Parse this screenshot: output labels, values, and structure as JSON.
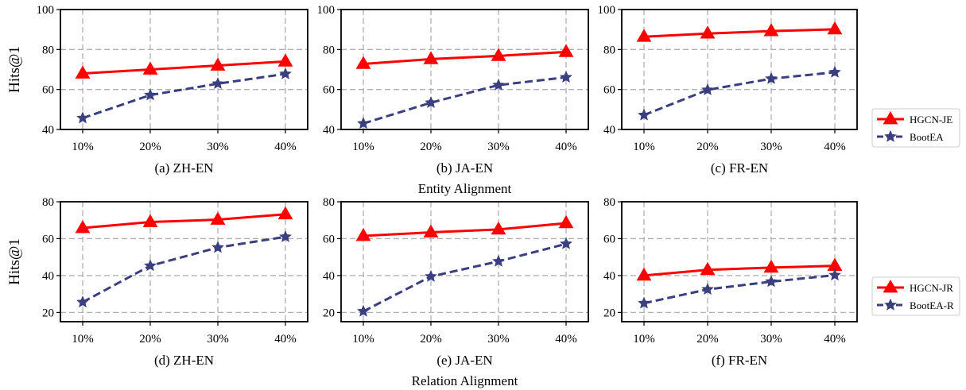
{
  "groups": [
    {
      "title": "Entity Alignment",
      "ylabel": "Hits@1",
      "legend": [
        {
          "name": "HGCN-JE",
          "color": "#ff0000",
          "marker": "triangle",
          "dash": "solid"
        },
        {
          "name": "BootEA",
          "color": "#3b3f7f",
          "marker": "star",
          "dash": "dashed"
        }
      ]
    },
    {
      "title": "Relation Alignment",
      "ylabel": "Hits@1",
      "legend": [
        {
          "name": "HGCN-JR",
          "color": "#ff0000",
          "marker": "triangle",
          "dash": "solid"
        },
        {
          "name": "BootEA-R",
          "color": "#3b3f7f",
          "marker": "star",
          "dash": "dashed"
        }
      ]
    }
  ],
  "chart_data": [
    {
      "type": "line",
      "caption": "(a) ZH-EN",
      "categories": [
        "10%",
        "20%",
        "30%",
        "40%"
      ],
      "ylim": [
        40,
        100
      ],
      "yticks": [
        40,
        60,
        80,
        100
      ],
      "grid": true,
      "series": [
        {
          "name": "HGCN-JE",
          "values": [
            68,
            70,
            72,
            74
          ]
        },
        {
          "name": "BootEA",
          "values": [
            45.7,
            57.2,
            62.9,
            67.8
          ]
        }
      ]
    },
    {
      "type": "line",
      "caption": "(b) JA-EN",
      "categories": [
        "10%",
        "20%",
        "30%",
        "40%"
      ],
      "ylim": [
        40,
        100
      ],
      "yticks": [
        40,
        60,
        80,
        100
      ],
      "grid": true,
      "series": [
        {
          "name": "HGCN-JE",
          "values": [
            72.8,
            75.2,
            76.8,
            78.8
          ]
        },
        {
          "name": "BootEA",
          "values": [
            43,
            53.4,
            62.2,
            66.1
          ]
        }
      ]
    },
    {
      "type": "line",
      "caption": "(c) FR-EN",
      "categories": [
        "10%",
        "20%",
        "30%",
        "40%"
      ],
      "ylim": [
        40,
        100
      ],
      "yticks": [
        40,
        60,
        80,
        100
      ],
      "grid": true,
      "series": [
        {
          "name": "HGCN-JE",
          "values": [
            86.4,
            88,
            89.2,
            90.1
          ]
        },
        {
          "name": "BootEA",
          "values": [
            47.2,
            59.8,
            65.4,
            68.6
          ]
        }
      ]
    },
    {
      "type": "line",
      "caption": "(d) ZH-EN",
      "categories": [
        "10%",
        "20%",
        "30%",
        "40%"
      ],
      "ylim": [
        15,
        80
      ],
      "yticks": [
        20,
        40,
        60,
        80
      ],
      "grid": true,
      "series": [
        {
          "name": "HGCN-JR",
          "values": [
            65.8,
            69,
            70.3,
            73.2
          ]
        },
        {
          "name": "BootEA-R",
          "values": [
            25.6,
            45.3,
            55.2,
            61
          ]
        }
      ]
    },
    {
      "type": "line",
      "caption": "(e) JA-EN",
      "categories": [
        "10%",
        "20%",
        "30%",
        "40%"
      ],
      "ylim": [
        15,
        80
      ],
      "yticks": [
        20,
        40,
        60,
        80
      ],
      "grid": true,
      "series": [
        {
          "name": "HGCN-JR",
          "values": [
            61.5,
            63.4,
            65,
            68.4
          ]
        },
        {
          "name": "BootEA-R",
          "values": [
            20.6,
            39.5,
            47.7,
            57.2
          ]
        }
      ]
    },
    {
      "type": "line",
      "caption": "(f) FR-EN",
      "categories": [
        "10%",
        "20%",
        "30%",
        "40%"
      ],
      "ylim": [
        15,
        80
      ],
      "yticks": [
        20,
        40,
        60,
        80
      ],
      "grid": true,
      "series": [
        {
          "name": "HGCN-JR",
          "values": [
            40,
            43.1,
            44.3,
            45.3
          ]
        },
        {
          "name": "BootEA-R",
          "values": [
            25,
            32.5,
            36.7,
            40.2
          ]
        }
      ]
    }
  ]
}
